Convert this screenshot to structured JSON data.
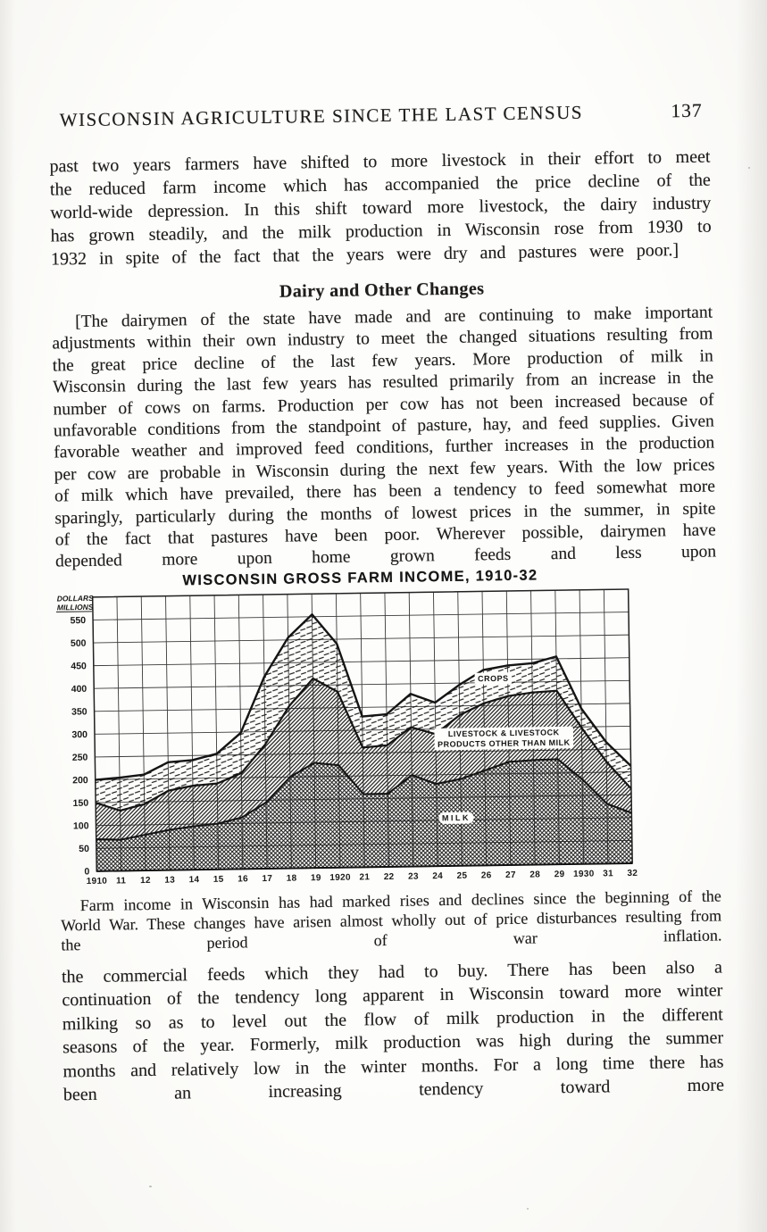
{
  "page": {
    "header": {
      "title": "WISCONSIN AGRICULTURE SINCE THE LAST CENSUS",
      "page_number": "137"
    },
    "paragraph_1": "past two years farmers have shifted to more livestock in their effort to meet the reduced farm income which has accompanied the price decline of the world-wide depression. In this shift toward more livestock, the dairy industry has grown steadily, and the milk production in Wisconsin rose from 1930 to 1932 in spite of the fact that the years were dry and pastures were poor.]",
    "section_heading": "Dairy and Other Changes",
    "paragraph_2": "[The dairymen of the state have made and are continuing to make important adjustments within their own industry to meet the changed situations resulting from the great price decline of the last few years. More production of milk in Wisconsin during the last few years has resulted primarily from an increase in the number of cows on farms. Production per cow has not been increased because of unfavorable conditions from the standpoint of pasture, hay, and feed supplies. Given favorable weather and improved feed conditions, further increases in the production per cow are probable in Wisconsin during the next few years. With the low prices of milk which have prevailed, there has been a tendency to feed somewhat more sparingly, particularly during the months of lowest prices in the summer, in spite of the fact that pastures have been poor. Wherever possible, dairymen have depended more upon home grown feeds and less upon",
    "chart_caption": "Farm income in Wisconsin has had marked rises and declines since the beginning of the World War. These changes have arisen almost wholly out of price disturbances resulting from the period of war inflation.",
    "paragraph_3": "the commercial feeds which they had to buy. There has been also a continuation of the tendency long apparent in Wisconsin toward more winter milking so as to level out the flow of milk production in the different seasons of the year. Formerly, milk production was high during the summer months and relatively low in the winter months. For a long time there has been an increasing tendency toward more"
  },
  "chart_data": {
    "type": "area",
    "stacked": true,
    "title": "WISCONSIN GROSS FARM INCOME, 1910-32",
    "unit": "million dollars",
    "ylabel_lines": [
      "DOLLARS",
      "MILLIONS"
    ],
    "years": [
      1910,
      1911,
      1912,
      1913,
      1914,
      1915,
      1916,
      1917,
      1918,
      1919,
      1920,
      1921,
      1922,
      1923,
      1924,
      1925,
      1926,
      1927,
      1928,
      1929,
      1930,
      1931,
      1932
    ],
    "x_tick_labels": [
      "1910",
      "11",
      "12",
      "13",
      "14",
      "15",
      "16",
      "17",
      "18",
      "19",
      "1920",
      "21",
      "22",
      "23",
      "24",
      "25",
      "26",
      "27",
      "28",
      "29",
      "1930",
      "31",
      "32"
    ],
    "y_ticks": [
      0,
      50,
      100,
      150,
      200,
      250,
      300,
      350,
      400,
      450,
      500,
      550
    ],
    "ylim": [
      0,
      600
    ],
    "grid": true,
    "series": [
      {
        "name": "MILK",
        "pattern": "crosshatch",
        "values": [
          70,
          68,
          78,
          88,
          95,
          100,
          113,
          145,
          200,
          230,
          224,
          160,
          160,
          200,
          180,
          190,
          208,
          226,
          229,
          230,
          185,
          131,
          110
        ]
      },
      {
        "name": "LIVESTOCK & LIVESTOCK PRODUCTS OTHER THAN MILK",
        "pattern": "diagonal",
        "values": [
          80,
          64,
          67,
          86,
          89,
          88,
          97,
          127,
          155,
          185,
          161,
          102,
          106,
          105,
          109,
          140,
          147,
          144,
          148,
          150,
          113,
          92,
          53
        ]
      },
      {
        "name": "CROPS",
        "pattern": "dashes",
        "values": [
          50,
          72,
          65,
          62,
          56,
          65,
          88,
          148,
          150,
          140,
          105,
          68,
          68,
          73,
          69,
          66,
          73,
          67,
          64,
          75,
          42,
          43,
          50
        ]
      }
    ],
    "area_labels": [
      {
        "lines": [
          "CROPS"
        ],
        "x": 1926.4,
        "y": 403
      },
      {
        "lines": [
          "LIVESTOCK & LIVESTOCK",
          "PRODUCTS OTHER THAN MILK"
        ],
        "x": 1926.8,
        "y": 283
      },
      {
        "lines": [
          "MILK"
        ],
        "x": 1924.8,
        "y": 99
      }
    ]
  }
}
